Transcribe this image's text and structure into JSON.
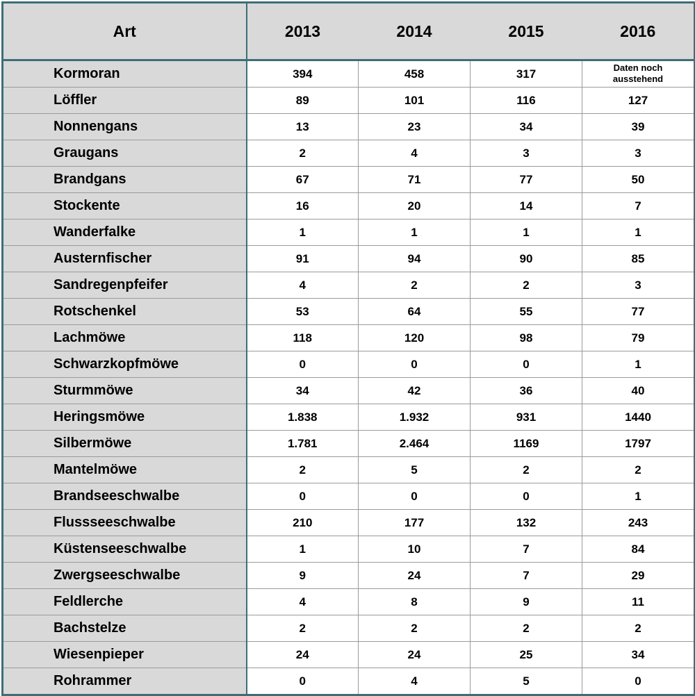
{
  "table": {
    "header": [
      "Art",
      "2013",
      "2014",
      "2015",
      "2016"
    ],
    "rows": [
      [
        "Kormoran",
        "394",
        "458",
        "317",
        "Daten noch ausstehend"
      ],
      [
        "Löffler",
        "89",
        "101",
        "116",
        "127"
      ],
      [
        "Nonnengans",
        "13",
        "23",
        "34",
        "39"
      ],
      [
        "Graugans",
        "2",
        "4",
        "3",
        "3"
      ],
      [
        "Brandgans",
        "67",
        "71",
        "77",
        "50"
      ],
      [
        "Stockente",
        "16",
        "20",
        "14",
        "7"
      ],
      [
        "Wanderfalke",
        "1",
        "1",
        "1",
        "1"
      ],
      [
        "Austernfischer",
        "91",
        "94",
        "90",
        "85"
      ],
      [
        "Sandregenpfeifer",
        "4",
        "2",
        "2",
        "3"
      ],
      [
        "Rotschenkel",
        "53",
        "64",
        "55",
        "77"
      ],
      [
        "Lachmöwe",
        "118",
        "120",
        "98",
        "79"
      ],
      [
        "Schwarzkopfmöwe",
        "0",
        "0",
        "0",
        "1"
      ],
      [
        "Sturmmöwe",
        "34",
        "42",
        "36",
        "40"
      ],
      [
        "Heringsmöwe",
        "1.838",
        "1.932",
        "931",
        "1440"
      ],
      [
        "Silbermöwe",
        "1.781",
        "2.464",
        "1169",
        "1797"
      ],
      [
        "Mantelmöwe",
        "2",
        "5",
        "2",
        "2"
      ],
      [
        "Brandseeschwalbe",
        "0",
        "0",
        "0",
        "1"
      ],
      [
        "Flussseeschwalbe",
        "210",
        "177",
        "132",
        "243"
      ],
      [
        "Küstenseeschwalbe",
        "1",
        "10",
        "7",
        "84"
      ],
      [
        "Zwergseeschwalbe",
        "9",
        "24",
        "7",
        "29"
      ],
      [
        "Feldlerche",
        "4",
        "8",
        "9",
        "11"
      ],
      [
        "Bachstelze",
        "2",
        "2",
        "2",
        "2"
      ],
      [
        "Wiesenpieper",
        "24",
        "24",
        "25",
        "34"
      ],
      [
        "Rohrammer",
        "0",
        "4",
        "5",
        "0"
      ]
    ]
  }
}
